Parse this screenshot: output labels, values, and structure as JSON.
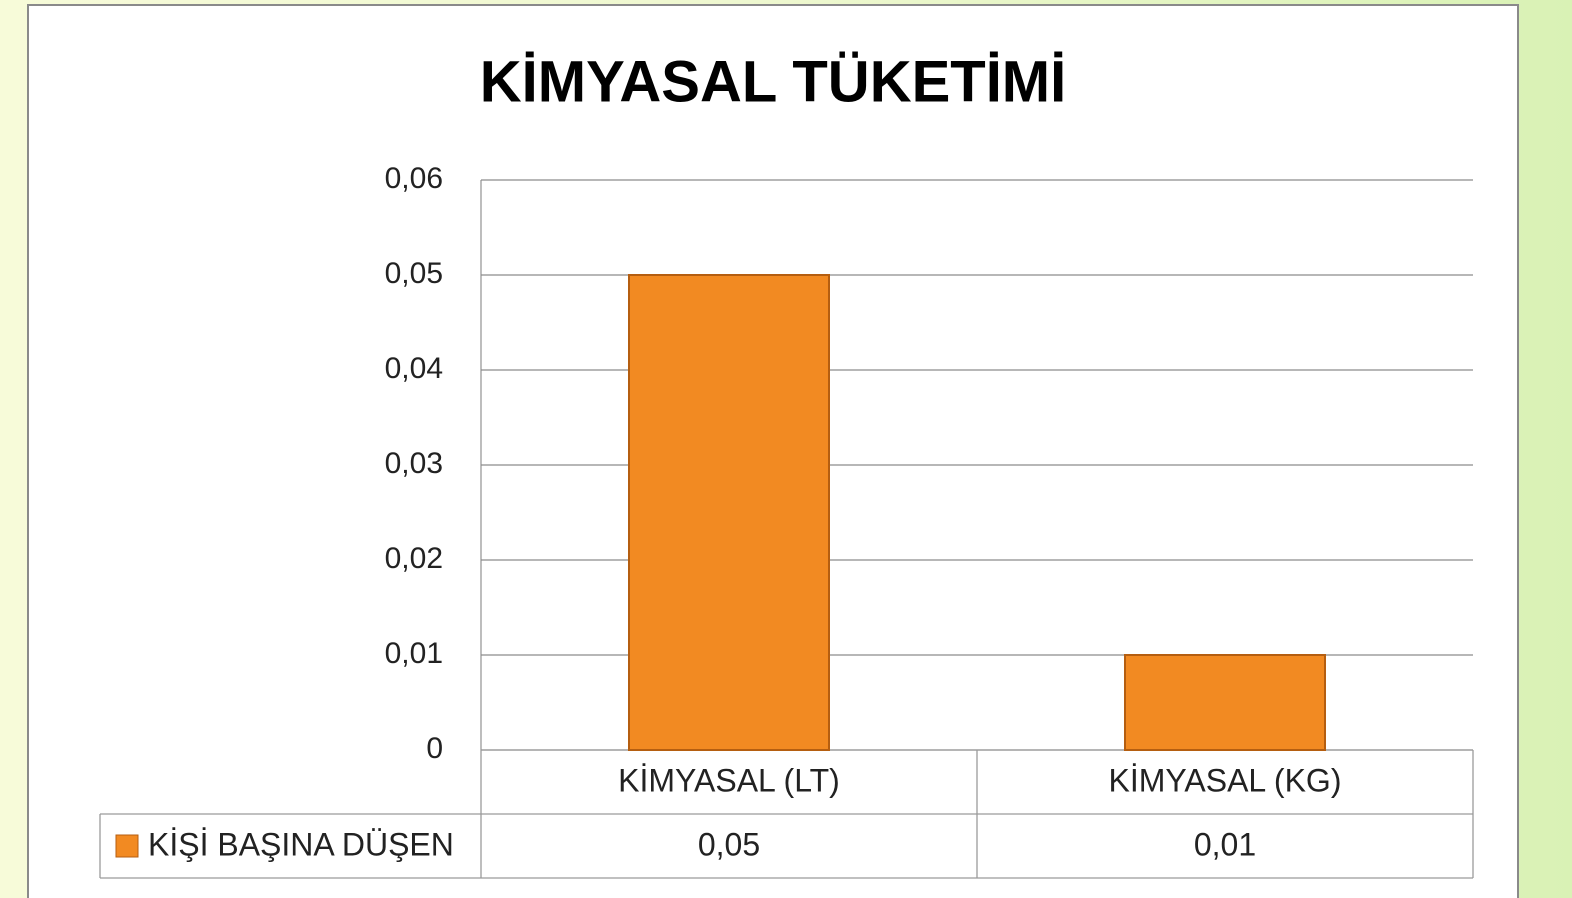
{
  "chart_data": {
    "type": "bar",
    "title": "KİMYASAL TÜKETİMİ",
    "categories": [
      "KİMYASAL (LT)",
      "KİMYASAL (KG)"
    ],
    "series": [
      {
        "name": "KİŞİ BAŞINA DÜŞEN",
        "color": "#f28a22",
        "values": [
          0.05,
          0.01
        ],
        "value_labels": [
          "0,05",
          "0,01"
        ]
      }
    ],
    "ylim": [
      0,
      0.06
    ],
    "yticks": [
      0,
      {
        "value": 0.01,
        "label": "0,01"
      },
      {
        "value": 0.02,
        "label": "0,02"
      },
      {
        "value": 0.03,
        "label": "0,03"
      },
      {
        "value": 0.04,
        "label": "0,04"
      },
      {
        "value": 0.05,
        "label": "0,05"
      },
      {
        "value": 0.06,
        "label": "0,06"
      }
    ],
    "grid": true,
    "legend": "table"
  }
}
